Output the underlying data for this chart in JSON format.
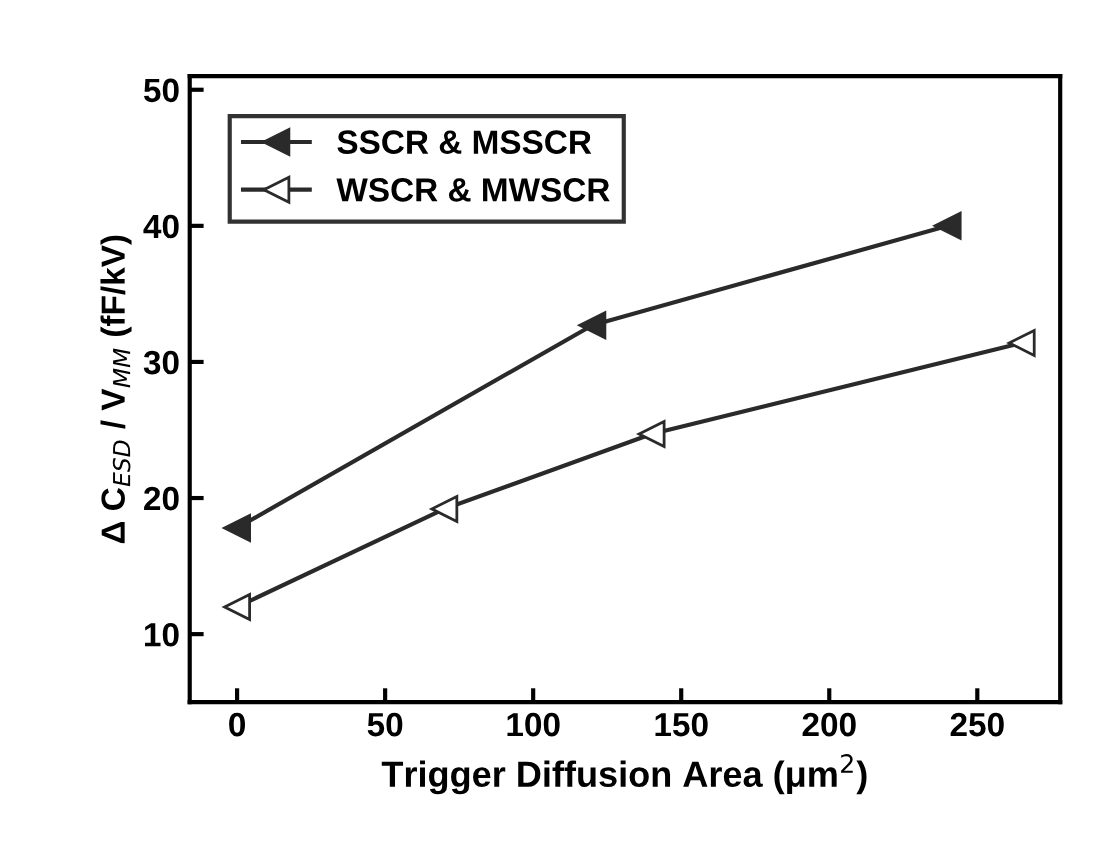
{
  "chart_data": {
    "type": "line",
    "xlabel": "Trigger Diffusion Area (μm$^{2}$)",
    "ylabel": "Δ C$_{ESD}$ / V$_{MM}$ (fF/kV)",
    "xlim": [
      -16,
      278
    ],
    "xticks": [
      0,
      50,
      100,
      150,
      200,
      250
    ],
    "ylim": [
      5,
      51
    ],
    "yticks": [
      10,
      20,
      30,
      40,
      50
    ],
    "marker": "triangle",
    "line_style": "solid",
    "grid": false,
    "legend": "top left",
    "series": [
      {
        "name": "SSCR & MSSCR",
        "color": "#2a2a2a",
        "x": [
          0,
          120,
          240
        ],
        "values": [
          17.8,
          32.7,
          40.0
        ]
      },
      {
        "name": "WSCR & MWSCR",
        "color": "#2a2a2a",
        "x": [
          0,
          70,
          140,
          265
        ],
        "values": [
          12.0,
          19.2,
          24.7,
          31.4
        ]
      }
    ]
  }
}
